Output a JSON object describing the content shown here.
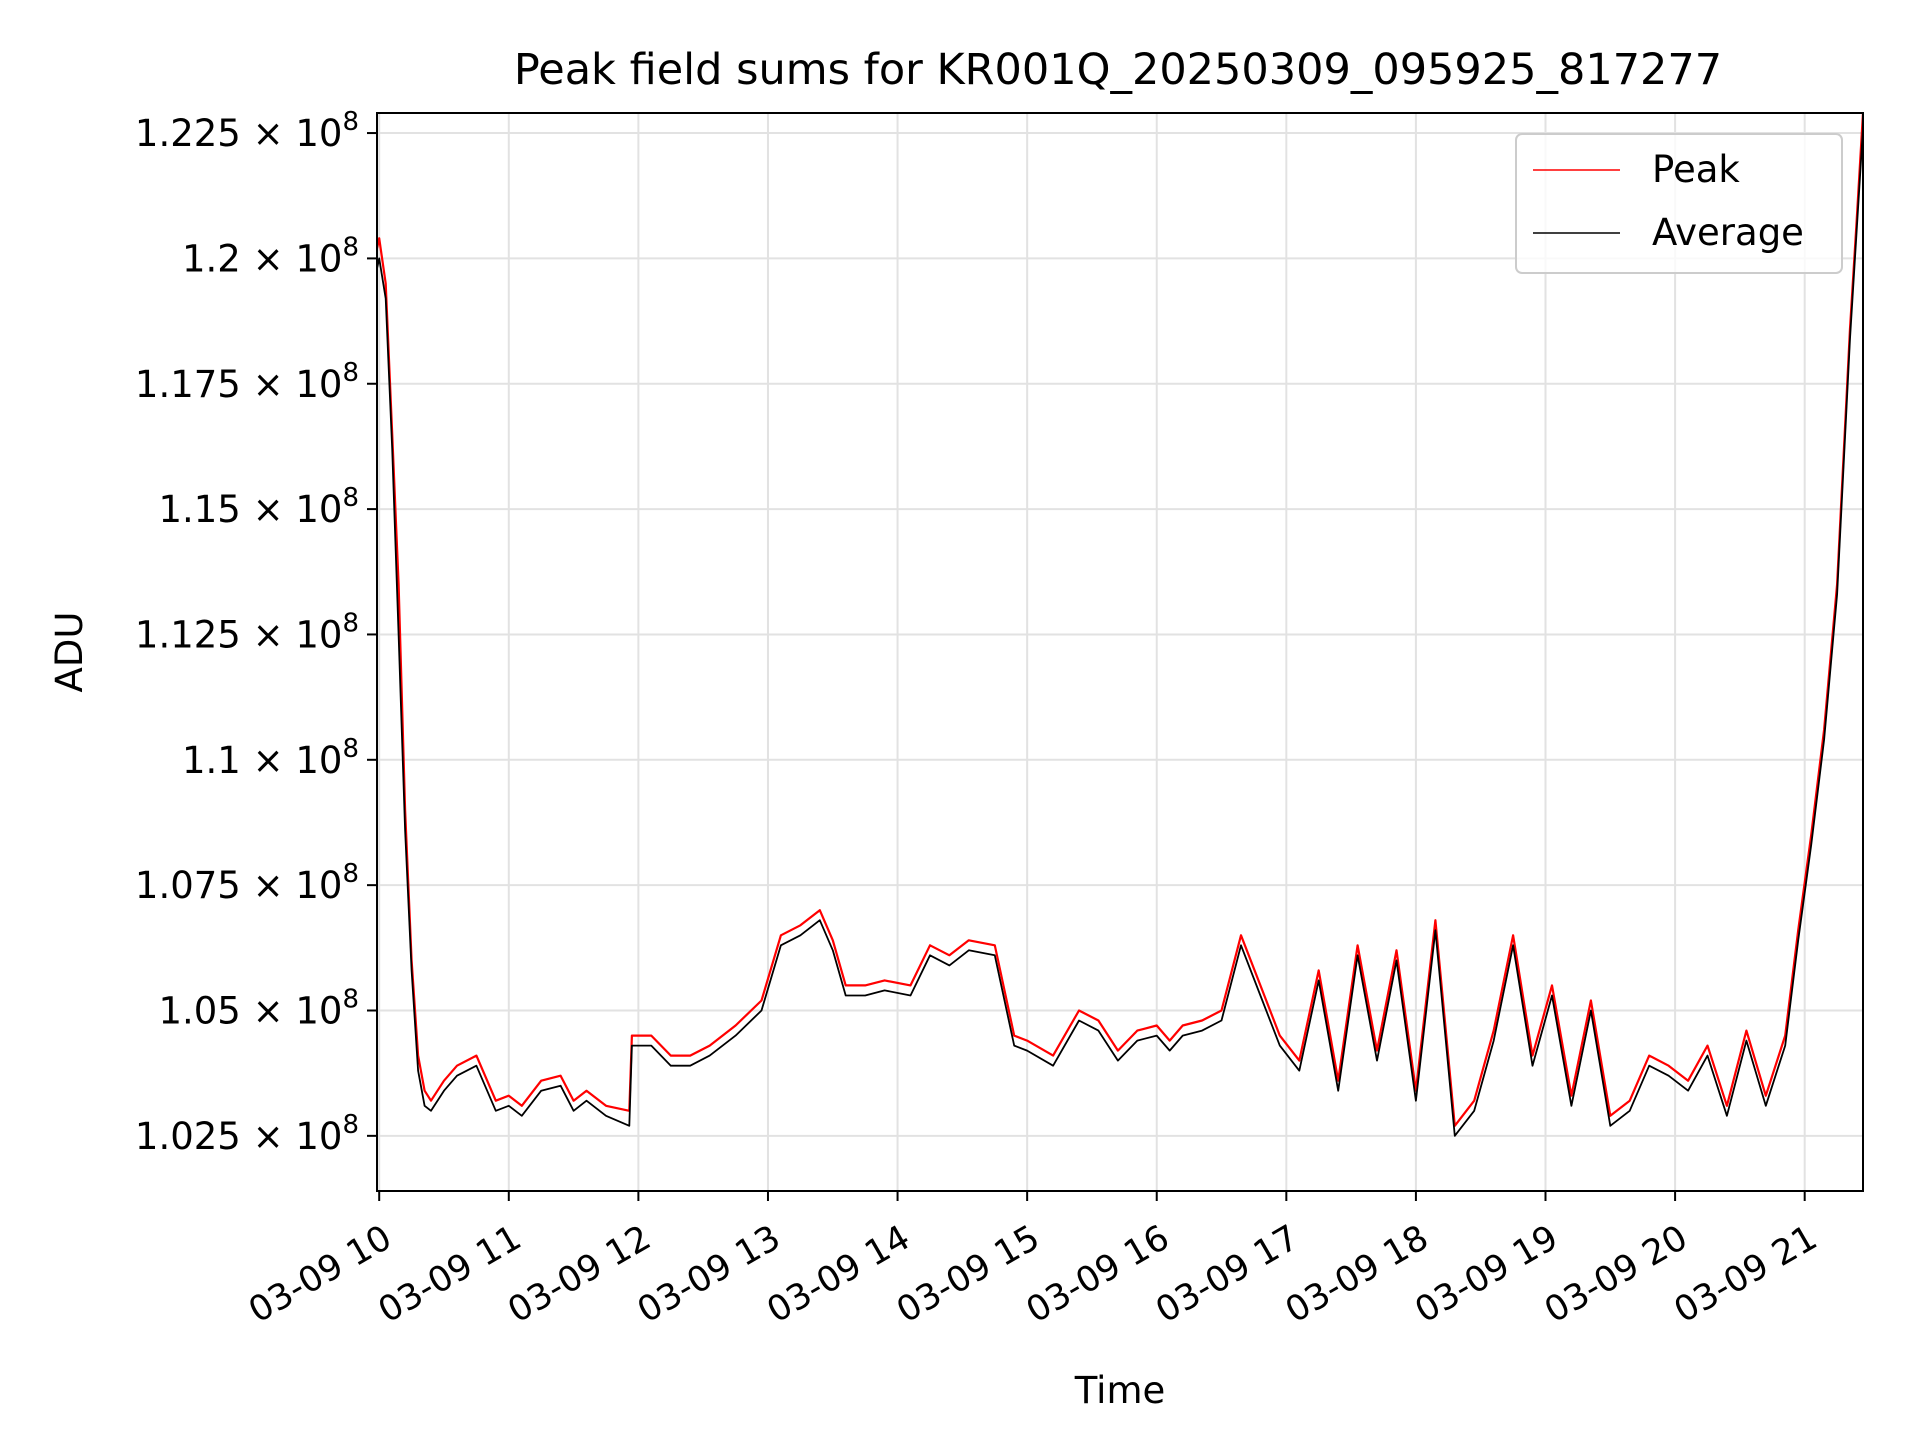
{
  "chart_data": {
    "type": "line",
    "title": "Peak field sums for KR001Q_20250309_095925_817277",
    "xlabel": "Time",
    "ylabel": "ADU",
    "x_unit": "hours on 2025-03-09",
    "xlim": [
      9.983,
      21.45
    ],
    "ylim": [
      101400000,
      122900000
    ],
    "x_ticks": [
      {
        "value": 10,
        "label": "03-09 10"
      },
      {
        "value": 11,
        "label": "03-09 11"
      },
      {
        "value": 12,
        "label": "03-09 12"
      },
      {
        "value": 13,
        "label": "03-09 13"
      },
      {
        "value": 14,
        "label": "03-09 14"
      },
      {
        "value": 15,
        "label": "03-09 15"
      },
      {
        "value": 16,
        "label": "03-09 16"
      },
      {
        "value": 17,
        "label": "03-09 17"
      },
      {
        "value": 18,
        "label": "03-09 18"
      },
      {
        "value": 19,
        "label": "03-09 19"
      },
      {
        "value": 20,
        "label": "03-09 20"
      },
      {
        "value": 21,
        "label": "03-09 21"
      }
    ],
    "y_ticks": [
      {
        "value": 102500000,
        "mantissa": "1.025",
        "times": "×",
        "base": "10",
        "exp": "8"
      },
      {
        "value": 105000000,
        "mantissa": "1.05",
        "times": "×",
        "base": "10",
        "exp": "8"
      },
      {
        "value": 107500000,
        "mantissa": "1.075",
        "times": "×",
        "base": "10",
        "exp": "8"
      },
      {
        "value": 110000000,
        "mantissa": "1.1",
        "times": "×",
        "base": "10",
        "exp": "8"
      },
      {
        "value": 112500000,
        "mantissa": "1.125",
        "times": "×",
        "base": "10",
        "exp": "8"
      },
      {
        "value": 115000000,
        "mantissa": "1.15",
        "times": "×",
        "base": "10",
        "exp": "8"
      },
      {
        "value": 117500000,
        "mantissa": "1.175",
        "times": "×",
        "base": "10",
        "exp": "8"
      },
      {
        "value": 120000000,
        "mantissa": "1.2",
        "times": "×",
        "base": "10",
        "exp": "8"
      },
      {
        "value": 122500000,
        "mantissa": "1.225",
        "times": "×",
        "base": "10",
        "exp": "8"
      }
    ],
    "grid": true,
    "legend_position": "top-right",
    "x": [
      9.983,
      10.0,
      10.05,
      10.1,
      10.15,
      10.2,
      10.25,
      10.3,
      10.35,
      10.4,
      10.5,
      10.6,
      10.75,
      10.9,
      11.0,
      11.1,
      11.25,
      11.4,
      11.5,
      11.6,
      11.75,
      11.93,
      11.95,
      12.1,
      12.25,
      12.4,
      12.55,
      12.75,
      12.95,
      13.1,
      13.25,
      13.4,
      13.5,
      13.6,
      13.75,
      13.9,
      14.1,
      14.25,
      14.4,
      14.55,
      14.75,
      14.9,
      15.0,
      15.2,
      15.4,
      15.55,
      15.7,
      15.85,
      16.0,
      16.1,
      16.2,
      16.35,
      16.5,
      16.65,
      16.8,
      16.95,
      17.1,
      17.25,
      17.4,
      17.55,
      17.7,
      17.85,
      18.0,
      18.15,
      18.3,
      18.45,
      18.6,
      18.75,
      18.9,
      19.05,
      19.2,
      19.35,
      19.5,
      19.65,
      19.8,
      19.95,
      20.1,
      20.25,
      20.4,
      20.55,
      20.7,
      20.85,
      20.95,
      21.05,
      21.15,
      21.25,
      21.35,
      21.4,
      21.45
    ],
    "series": [
      {
        "name": "Peak",
        "color": "#ff0000",
        "values": [
          120200000,
          120400000,
          119500000,
          116500000,
          113500000,
          109000000,
          106000000,
          104100000,
          103400000,
          103200000,
          103600000,
          103900000,
          104100000,
          103200000,
          103300000,
          103100000,
          103600000,
          103700000,
          103200000,
          103400000,
          103100000,
          103000000,
          104500000,
          104500000,
          104100000,
          104100000,
          104300000,
          104700000,
          105200000,
          106500000,
          106700000,
          107000000,
          106400000,
          105500000,
          105500000,
          105600000,
          105500000,
          106300000,
          106100000,
          106400000,
          106300000,
          104500000,
          104400000,
          104100000,
          105000000,
          104800000,
          104200000,
          104600000,
          104700000,
          104400000,
          104700000,
          104800000,
          105000000,
          106500000,
          105500000,
          104500000,
          104000000,
          105800000,
          103600000,
          106300000,
          104200000,
          106200000,
          103400000,
          106800000,
          102700000,
          103200000,
          104600000,
          106500000,
          104100000,
          105500000,
          103300000,
          105200000,
          102900000,
          103200000,
          104100000,
          103900000,
          103600000,
          104300000,
          103100000,
          104600000,
          103300000,
          104500000,
          106600000,
          108500000,
          110600000,
          113500000,
          118600000,
          120700000,
          122900000
        ]
      },
      {
        "name": "Average",
        "color": "#000000",
        "values": [
          119800000,
          120000000,
          119200000,
          116200000,
          112500000,
          108600000,
          105800000,
          103800000,
          103100000,
          103000000,
          103400000,
          103700000,
          103900000,
          103000000,
          103100000,
          102900000,
          103400000,
          103500000,
          103000000,
          103200000,
          102900000,
          102700000,
          104300000,
          104300000,
          103900000,
          103900000,
          104100000,
          104500000,
          105000000,
          106300000,
          106500000,
          106800000,
          106200000,
          105300000,
          105300000,
          105400000,
          105300000,
          106100000,
          105900000,
          106200000,
          106100000,
          104300000,
          104200000,
          103900000,
          104800000,
          104600000,
          104000000,
          104400000,
          104500000,
          104200000,
          104500000,
          104600000,
          104800000,
          106300000,
          105300000,
          104300000,
          103800000,
          105600000,
          103400000,
          106100000,
          104000000,
          106000000,
          103200000,
          106600000,
          102500000,
          103000000,
          104400000,
          106300000,
          103900000,
          105300000,
          103100000,
          105000000,
          102700000,
          103000000,
          103900000,
          103700000,
          103400000,
          104100000,
          102900000,
          104400000,
          103100000,
          104300000,
          106400000,
          108300000,
          110400000,
          113300000,
          118400000,
          120500000,
          122600000
        ]
      }
    ]
  }
}
